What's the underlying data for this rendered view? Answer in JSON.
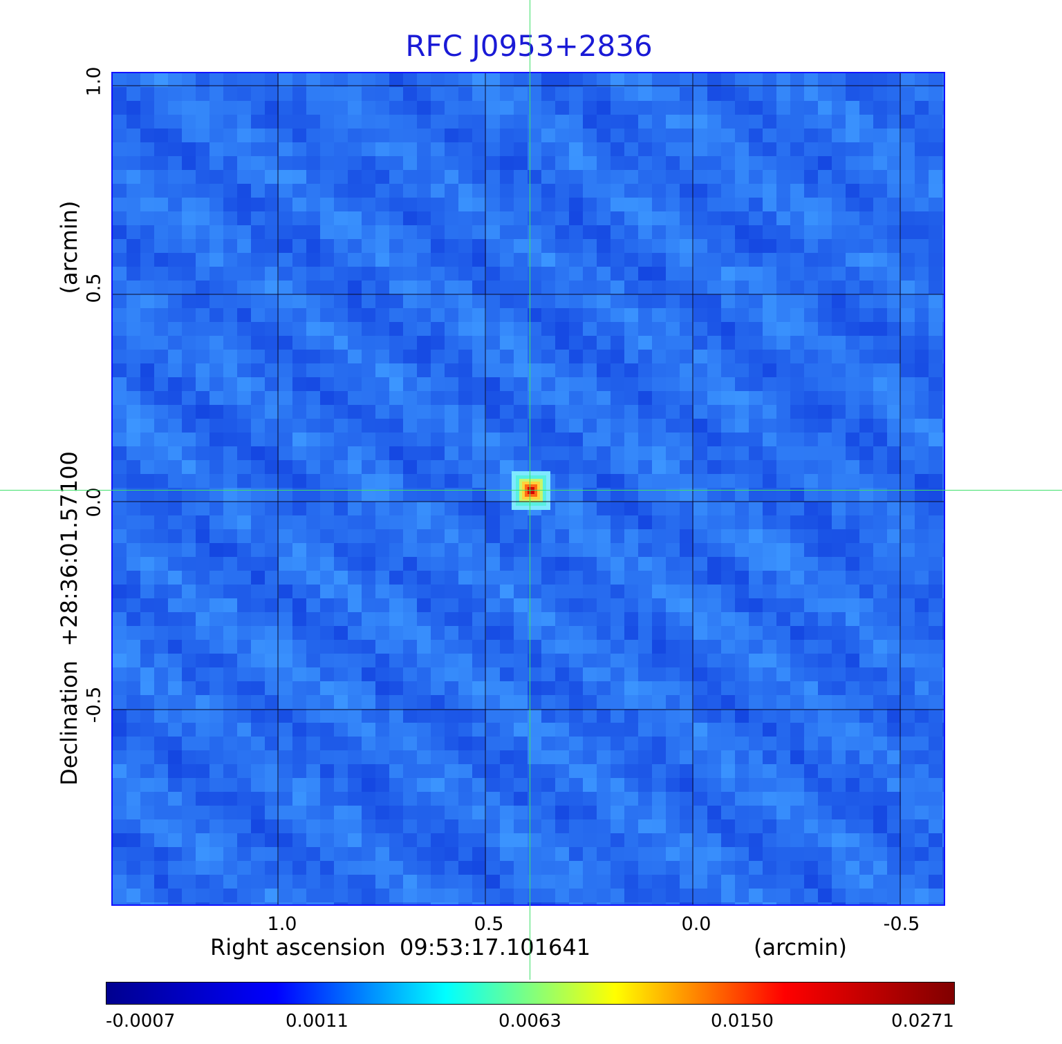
{
  "title": "RFC J0953+2836",
  "x_axis": {
    "label": "Right ascension  09:53:17.101641",
    "unit": "(arcmin)",
    "ticks": [
      "1.0",
      "0.5",
      "0.0",
      "-0.5"
    ]
  },
  "y_axis": {
    "label": "Declination  +28:36:01.57100",
    "unit": "(arcmin)",
    "ticks": [
      "1.0",
      "0.5",
      "0.0",
      "-0.5"
    ]
  },
  "colorbar": {
    "ticks": [
      "-0.0007",
      "0.0011",
      "0.0063",
      "0.0150",
      "0.0271"
    ],
    "colormap": [
      "#00008f",
      "#0000ff",
      "#00ffff",
      "#ffff00",
      "#ff0000",
      "#800000"
    ]
  },
  "colors": {
    "title": "#1a1ad6",
    "frame": "#1111ff",
    "crosshair": "#3ee06a",
    "background_noise": "#2a66f0"
  }
}
